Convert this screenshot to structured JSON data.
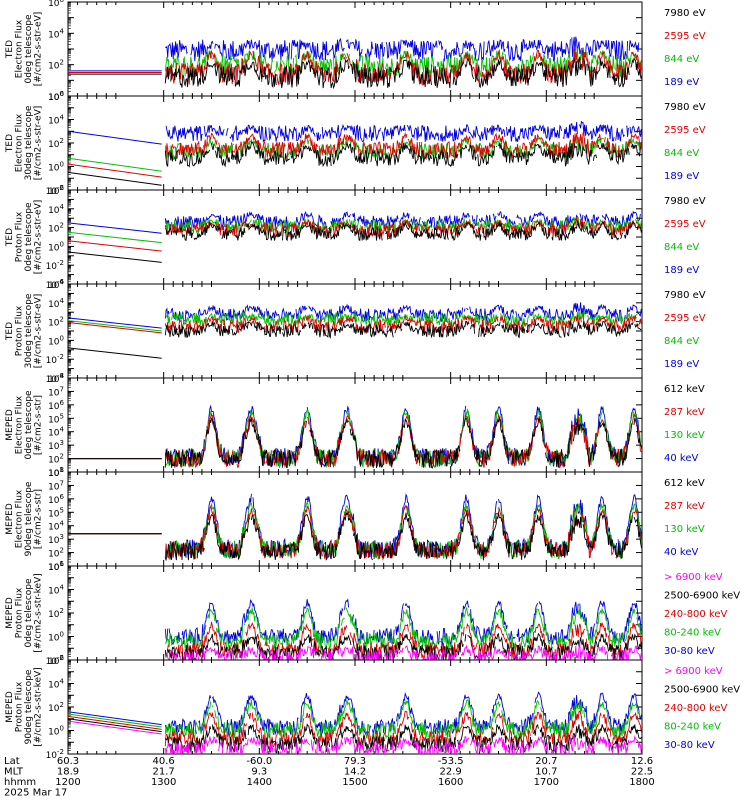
{
  "chart_data": {
    "type": "line",
    "date": "2025 Mar 17",
    "x_range": [
      1200,
      1800
    ],
    "x_ticks": [
      "1200",
      "1300",
      "1400",
      "1500",
      "1600",
      "1700",
      "1800"
    ],
    "footer": {
      "labels": [
        "Lat",
        "MLT",
        "hhmm"
      ],
      "lat": [
        "60.3",
        "40.6",
        "-60.0",
        "79.3",
        "-53.5",
        "20.7",
        "12.6"
      ],
      "mlt": [
        "18.9",
        "21.7",
        "9.3",
        "14.2",
        "22.9",
        "10.7",
        "22.5"
      ],
      "hhmm": [
        "1200",
        "1300",
        "1400",
        "1500",
        "1600",
        "1700",
        "1800"
      ]
    },
    "panels": [
      {
        "ylabel": [
          "TED",
          "Electron Flux",
          "0deg telescope",
          "[#/cm2-s-str-eV]"
        ],
        "ylim_exp": [
          0,
          6
        ],
        "tick_labels": [
          "10^0",
          "10^2",
          "10^4",
          "10^6"
        ],
        "legend": [
          {
            "label": "7980 eV",
            "color": "#000000"
          },
          {
            "label": "2595 eV",
            "color": "#e00000"
          },
          {
            "label": "844 eV",
            "color": "#00c000"
          },
          {
            "label": "189 eV",
            "color": "#0000e0"
          }
        ],
        "series": [
          {
            "name": "189 eV",
            "base": 2.9,
            "amp": 0.45
          },
          {
            "name": "844 eV",
            "base": 1.9,
            "amp": 0.8
          },
          {
            "name": "2595 eV",
            "base": 1.4,
            "amp": 1.4
          },
          {
            "name": "7980 eV",
            "base": 1.2,
            "amp": 1.0
          }
        ],
        "pre_gap": [
          1.6,
          1.5,
          1.5,
          1.4
        ]
      },
      {
        "ylabel": [
          "TED",
          "Electron Flux",
          "30deg telescope",
          "[#/cm2-s-str-eV]"
        ],
        "ylim_exp": [
          -2,
          6
        ],
        "tick_labels": [
          "10^-2",
          "10^0",
          "10^2",
          "10^4",
          "10^6"
        ],
        "legend": [
          {
            "label": "7980 eV",
            "color": "#000000"
          },
          {
            "label": "2595 eV",
            "color": "#e00000"
          },
          {
            "label": "844 eV",
            "color": "#00c000"
          },
          {
            "label": "189 eV",
            "color": "#0000e0"
          }
        ],
        "series": [
          {
            "name": "189 eV",
            "base": 2.8,
            "amp": 0.5
          },
          {
            "name": "844 eV",
            "base": 1.3,
            "amp": 1.0
          },
          {
            "name": "2595 eV",
            "base": 1.4,
            "amp": 1.3
          },
          {
            "name": "7980 eV",
            "base": 0.7,
            "amp": 1.2
          }
        ],
        "pre_gap": [
          3.0,
          0.7,
          0.2,
          -0.5
        ]
      },
      {
        "ylabel": [
          "TED",
          "Proton Flux",
          "0deg telescope",
          "[#/cm2-s-str-eV]"
        ],
        "ylim_exp": [
          -4,
          6
        ],
        "tick_labels": [
          "10^-4",
          "10^-2",
          "10^0",
          "10^2",
          "10^4",
          "10^6"
        ],
        "legend": [
          {
            "label": "7980 eV",
            "color": "#000000"
          },
          {
            "label": "2595 eV",
            "color": "#e00000"
          },
          {
            "label": "844 eV",
            "color": "#00c000"
          },
          {
            "label": "189 eV",
            "color": "#0000e0"
          }
        ],
        "series": [
          {
            "name": "189 eV",
            "base": 2.6,
            "amp": 0.9
          },
          {
            "name": "844 eV",
            "base": 2.1,
            "amp": 0.6
          },
          {
            "name": "2595 eV",
            "base": 1.7,
            "amp": 0.9
          },
          {
            "name": "7980 eV",
            "base": 1.3,
            "amp": 1.1
          }
        ],
        "pre_gap": [
          2.5,
          1.5,
          0.6,
          -0.6
        ]
      },
      {
        "ylabel": [
          "TED",
          "Proton Flux",
          "30deg telescope",
          "[#/cm2-s-str-eV]"
        ],
        "ylim_exp": [
          -4,
          6
        ],
        "tick_labels": [
          "10^-4",
          "10^-2",
          "10^0",
          "10^2",
          "10^4",
          "10^6"
        ],
        "legend": [
          {
            "label": "7980 eV",
            "color": "#000000"
          },
          {
            "label": "2595 eV",
            "color": "#e00000"
          },
          {
            "label": "844 eV",
            "color": "#00c000"
          },
          {
            "label": "189 eV",
            "color": "#0000e0"
          }
        ],
        "series": [
          {
            "name": "189 eV",
            "base": 2.7,
            "amp": 0.9
          },
          {
            "name": "844 eV",
            "base": 2.2,
            "amp": 0.4
          },
          {
            "name": "2595 eV",
            "base": 1.5,
            "amp": 0.9
          },
          {
            "name": "7980 eV",
            "base": 1.0,
            "amp": 0.8
          }
        ],
        "pre_gap": [
          2.4,
          2.1,
          1.9,
          -0.8
        ]
      },
      {
        "ylabel": [
          "MEPED",
          "Electron Flux",
          "0deg telescope",
          "[#/cm2-s-str]"
        ],
        "ylim_exp": [
          1,
          8
        ],
        "tick_labels": [
          "10^1",
          "10^2",
          "10^3",
          "10^4",
          "10^5",
          "10^6",
          "10^7",
          "10^8"
        ],
        "legend": [
          {
            "label": "612 keV",
            "color": "#000000"
          },
          {
            "label": "287 keV",
            "color": "#e00000"
          },
          {
            "label": "130 keV",
            "color": "#00c000"
          },
          {
            "label": "40 keV",
            "color": "#0000e0"
          }
        ],
        "series": [
          {
            "name": "40 keV",
            "base": 2.1,
            "amp": 4.0
          },
          {
            "name": "130 keV",
            "base": 2.0,
            "amp": 3.8
          },
          {
            "name": "287 keV",
            "base": 2.0,
            "amp": 3.4
          },
          {
            "name": "612 keV",
            "base": 2.0,
            "amp": 3.1
          }
        ],
        "pre_gap": [
          2.0,
          2.0,
          2.0,
          2.0
        ]
      },
      {
        "ylabel": [
          "MEPED",
          "Electron Flux",
          "90deg telescope",
          "[#/cm2-s-str]"
        ],
        "ylim_exp": [
          1,
          8
        ],
        "tick_labels": [
          "10^1",
          "10^2",
          "10^3",
          "10^4",
          "10^5",
          "10^6",
          "10^7",
          "10^8"
        ],
        "legend": [
          {
            "label": "612 keV",
            "color": "#000000"
          },
          {
            "label": "287 keV",
            "color": "#e00000"
          },
          {
            "label": "130 keV",
            "color": "#00c000"
          },
          {
            "label": "40 keV",
            "color": "#0000e0"
          }
        ],
        "series": [
          {
            "name": "40 keV",
            "base": 2.3,
            "amp": 4.2
          },
          {
            "name": "130 keV",
            "base": 2.2,
            "amp": 3.7
          },
          {
            "name": "287 keV",
            "base": 2.2,
            "amp": 3.3
          },
          {
            "name": "612 keV",
            "base": 2.1,
            "amp": 2.9
          }
        ],
        "pre_gap": [
          3.4,
          3.4,
          3.4,
          3.4
        ]
      },
      {
        "ylabel": [
          "MEPED",
          "Proton Flux",
          "0deg telescope",
          "[#/cm2-s-str-keV]"
        ],
        "ylim_exp": [
          -2,
          6
        ],
        "tick_labels": [
          "10^-2",
          "10^0",
          "10^2",
          "10^4",
          "10^6"
        ],
        "legend": [
          {
            "label": "> 6900 keV",
            "color": "#ff00ff"
          },
          {
            "label": "2500-6900 keV",
            "color": "#000000"
          },
          {
            "label": "240-800 keV",
            "color": "#e00000"
          },
          {
            "label": "80-240 keV",
            "color": "#00c000"
          },
          {
            "label": "30-80 keV",
            "color": "#0000e0"
          }
        ],
        "series": [
          {
            "name": "30-80 keV",
            "base": 0.0,
            "amp": 3.2
          },
          {
            "name": "80-240 keV",
            "base": -0.4,
            "amp": 2.9
          },
          {
            "name": "240-800 keV",
            "base": -1.2,
            "amp": 2.4
          },
          {
            "name": "2500-6900 keV",
            "base": -1.4,
            "amp": 1.5
          },
          {
            "name": "> 6900 keV",
            "base": -1.8,
            "amp": 0.8
          }
        ],
        "pre_gap": null
      },
      {
        "ylabel": [
          "MEPED",
          "Proton Flux",
          "90deg telescope",
          "[#/cm2-s-str-keV]"
        ],
        "ylim_exp": [
          -2,
          6
        ],
        "tick_labels": [
          "10^-2",
          "10^0",
          "10^2",
          "10^4",
          "10^6"
        ],
        "legend": [
          {
            "label": "> 6900 keV",
            "color": "#ff00ff"
          },
          {
            "label": "2500-6900 keV",
            "color": "#000000"
          },
          {
            "label": "240-800 keV",
            "color": "#e00000"
          },
          {
            "label": "80-240 keV",
            "color": "#00c000"
          },
          {
            "label": "30-80 keV",
            "color": "#0000e0"
          }
        ],
        "series": [
          {
            "name": "30-80 keV",
            "base": 0.3,
            "amp": 3.0
          },
          {
            "name": "80-240 keV",
            "base": 0.0,
            "amp": 2.6
          },
          {
            "name": "240-800 keV",
            "base": -0.7,
            "amp": 2.3
          },
          {
            "name": "2500-6900 keV",
            "base": -1.2,
            "amp": 1.6
          },
          {
            "name": "> 6900 keV",
            "base": -1.6,
            "amp": 0.9
          }
        ],
        "pre_gap": [
          1.6,
          1.4,
          1.2,
          1.0,
          0.8
        ]
      }
    ],
    "data_start_hhmm": 1300,
    "pass_times_hhmm": [
      1330,
      1355,
      1430,
      1455,
      1532,
      1610,
      1630,
      1655,
      1735,
      1755
    ],
    "humps_hhmm": [
      1355,
      1455,
      1720
    ]
  }
}
